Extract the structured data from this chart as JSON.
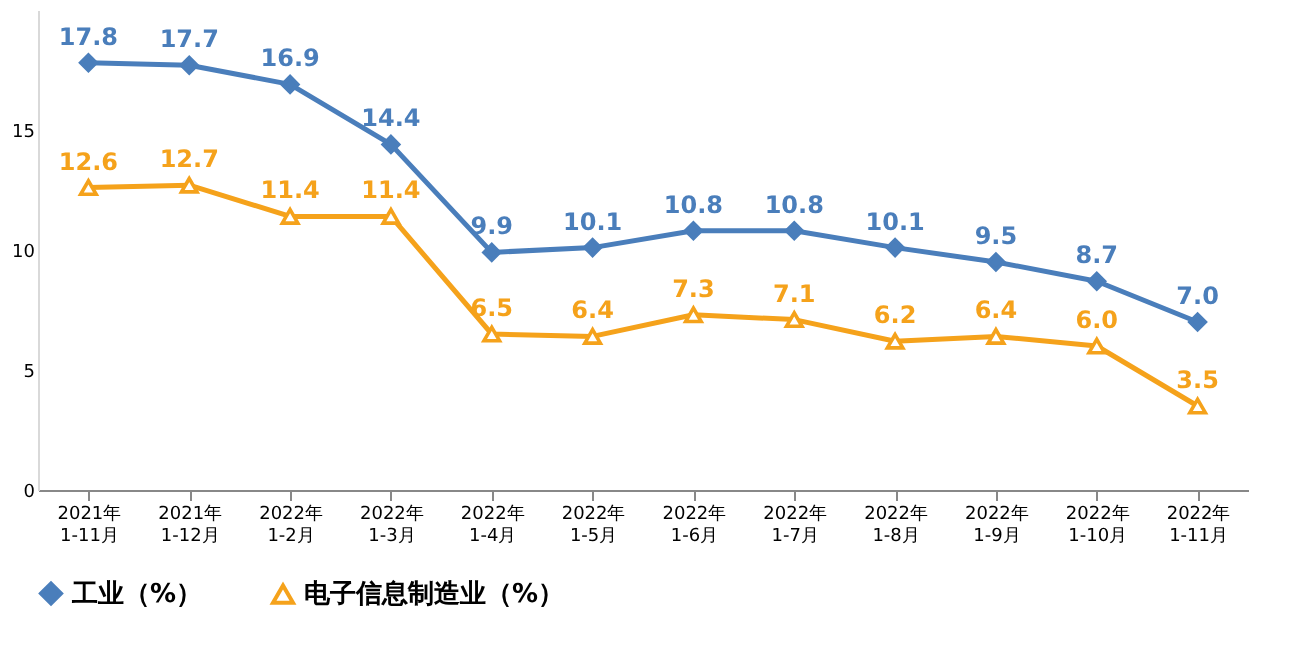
{
  "chart_data": {
    "type": "line",
    "categories": [
      "2021年\n1-11月",
      "2021年\n1-12月",
      "2022年\n1-2月",
      "2022年\n1-3月",
      "2022年\n1-4月",
      "2022年\n1-5月",
      "2022年\n1-6月",
      "2022年\n1-7月",
      "2022年\n1-8月",
      "2022年\n1-9月",
      "2022年\n1-10月",
      "2022年\n1-11月"
    ],
    "series": [
      {
        "name": "工业（%）",
        "color": "#4a7ebb",
        "marker": "diamond",
        "values": [
          17.8,
          17.7,
          16.9,
          14.4,
          9.9,
          10.1,
          10.8,
          10.8,
          10.1,
          9.5,
          8.7,
          7.0
        ],
        "value_labels": [
          "17.8",
          "17.7",
          "16.9",
          "14.4",
          "9.9",
          "10.1",
          "10.8",
          "10.8",
          "10.1",
          "9.5",
          "8.7",
          "7.0"
        ]
      },
      {
        "name": "电子信息制造业（%）",
        "color": "#f5a21b",
        "marker": "triangle",
        "values": [
          12.6,
          12.7,
          11.4,
          11.4,
          6.5,
          6.4,
          7.3,
          7.1,
          6.2,
          6.4,
          6.0,
          3.5
        ],
        "value_labels": [
          "12.6",
          "12.7",
          "11.4",
          "11.4",
          "6.5",
          "6.4",
          "7.3",
          "7.1",
          "6.2",
          "6.4",
          "6.0",
          "3.5"
        ]
      }
    ],
    "ylim": [
      0,
      20
    ],
    "yticks": [
      0,
      5,
      10,
      15
    ],
    "grid": false,
    "legend": "bottom",
    "line_style": "solid"
  }
}
